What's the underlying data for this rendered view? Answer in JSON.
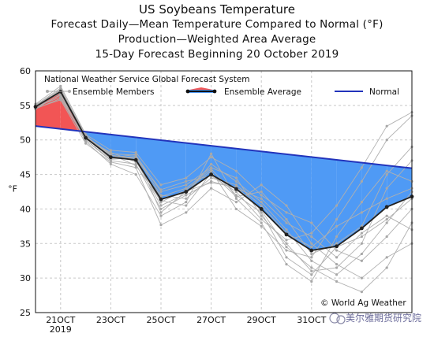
{
  "titles": {
    "line1": "US Soybeans Temperature",
    "line2": "Forecast Daily—Mean Temperature Compared to Normal (°F)",
    "line3": "Production—Weighted Area Average",
    "line4": "15-Day Forecast Beginning 20 October 2019"
  },
  "legend": {
    "header": "National Weather Service Global Forecast System",
    "members": "Ensemble Members",
    "average": "Ensemble Average",
    "normal": "Normal"
  },
  "credit": "© World Ag Weather",
  "watermark": "美尔雅期货研究院",
  "chart_data": {
    "type": "line",
    "ylabel": "°F",
    "ylim": [
      25,
      60
    ],
    "yticks": [
      25,
      30,
      35,
      40,
      45,
      50,
      55,
      60
    ],
    "xlim": [
      20,
      35
    ],
    "xticks": [
      {
        "x": 21,
        "label": "21OCT",
        "sub": "2019"
      },
      {
        "x": 23,
        "label": "23OCT",
        "sub": ""
      },
      {
        "x": 25,
        "label": "25OCT",
        "sub": ""
      },
      {
        "x": 27,
        "label": "27OCT",
        "sub": ""
      },
      {
        "x": 29,
        "label": "29OCT",
        "sub": ""
      },
      {
        "x": 31,
        "label": "31OCT",
        "sub": ""
      }
    ],
    "grid": true,
    "colors": {
      "warm": "#f25555",
      "cold": "#4f9af5",
      "normal": "#2233bb",
      "average": "#222222",
      "members": "#b0b0b0"
    },
    "series": [
      {
        "name": "Ensemble Average",
        "x": [
          20,
          21,
          22,
          23,
          24,
          25,
          26,
          27,
          28,
          29,
          30,
          31,
          32,
          33,
          34,
          35
        ],
        "values": [
          54.8,
          57.0,
          50.3,
          47.5,
          47.1,
          41.4,
          42.5,
          45.0,
          42.9,
          40.0,
          36.3,
          34.0,
          34.6,
          37.2,
          40.3,
          41.8
        ]
      },
      {
        "name": "Normal",
        "x": [
          20,
          35
        ],
        "values": [
          52.0,
          45.9
        ]
      }
    ],
    "ensemble_members": [
      [
        54.5,
        56.0,
        50.0,
        47.0,
        46.5,
        40.0,
        42.0,
        44.0,
        43.0,
        41.5,
        38.0,
        36.0,
        33.0,
        36.5,
        39.0,
        37.0
      ],
      [
        55.0,
        57.5,
        50.5,
        48.0,
        47.8,
        42.5,
        43.5,
        46.0,
        44.5,
        39.0,
        35.0,
        31.0,
        31.5,
        35.0,
        43.0,
        47.0
      ],
      [
        54.7,
        56.5,
        49.8,
        46.5,
        45.0,
        39.0,
        41.0,
        48.0,
        41.5,
        38.0,
        32.0,
        29.5,
        36.0,
        41.0,
        45.5,
        44.0
      ],
      [
        55.2,
        57.8,
        50.8,
        48.5,
        48.2,
        43.5,
        44.5,
        47.5,
        45.5,
        42.0,
        39.5,
        38.0,
        34.0,
        32.5,
        36.0,
        40.0
      ],
      [
        54.9,
        56.8,
        50.2,
        47.8,
        47.3,
        41.0,
        42.8,
        45.5,
        40.0,
        37.5,
        34.0,
        33.0,
        38.5,
        44.0,
        50.0,
        53.5
      ],
      [
        54.6,
        55.8,
        49.5,
        46.8,
        46.0,
        37.7,
        39.5,
        43.0,
        41.0,
        43.5,
        40.5,
        35.0,
        32.0,
        30.0,
        33.0,
        35.0
      ],
      [
        55.1,
        57.2,
        50.6,
        47.3,
        47.6,
        42.0,
        41.5,
        44.5,
        43.5,
        40.5,
        36.5,
        34.5,
        37.5,
        39.5,
        41.5,
        43.0
      ],
      [
        54.8,
        56.2,
        50.1,
        48.2,
        46.8,
        41.8,
        43.0,
        45.8,
        42.0,
        39.5,
        33.0,
        30.5,
        34.5,
        36.0,
        38.5,
        41.5
      ],
      [
        54.5,
        56.6,
        50.4,
        47.6,
        47.0,
        40.5,
        42.2,
        46.5,
        44.0,
        41.0,
        37.0,
        32.5,
        30.5,
        33.5,
        38.0,
        42.5
      ],
      [
        55.0,
        57.0,
        50.0,
        47.2,
        47.4,
        42.8,
        44.0,
        44.8,
        42.5,
        38.5,
        35.5,
        36.5,
        40.5,
        46.0,
        52.0,
        54.0
      ],
      [
        54.7,
        56.9,
        50.3,
        47.9,
        46.3,
        41.2,
        40.5,
        45.2,
        41.8,
        42.5,
        38.5,
        33.5,
        35.0,
        37.5,
        45.0,
        49.0
      ],
      [
        54.9,
        57.3,
        50.7,
        47.4,
        47.9,
        39.5,
        42.6,
        43.8,
        43.2,
        39.8,
        34.5,
        31.5,
        29.5,
        28.0,
        31.5,
        38.0
      ]
    ]
  }
}
